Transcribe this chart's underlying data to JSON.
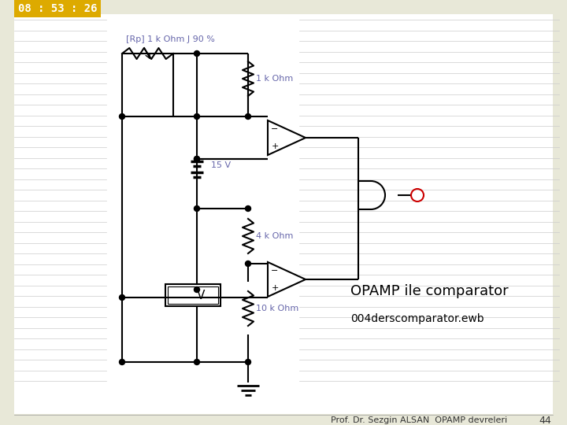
{
  "bg_color": "#e8e8d8",
  "slide_bg": "#ffffff",
  "line_color": "#000000",
  "blue_text": "#6666aa",
  "red_color": "#cc0000",
  "timer_bg": "#ddaa00",
  "timer_text": "#ffffff",
  "timer": "08 : 53 : 26",
  "label_rp": "[Rp] 1 k Ohm J 90 %",
  "label_1kohm": "1 k Ohm",
  "label_15v": "15 V",
  "label_4kohm": "4 k Ohm",
  "label_10kohm": "10 k Ohm",
  "title1": "OPAMP ile comparator",
  "title2": "004derscomparator.ewb",
  "footer": "Prof. Dr. Sezgin ALSAN  OPAMP devreleri",
  "page": "44"
}
